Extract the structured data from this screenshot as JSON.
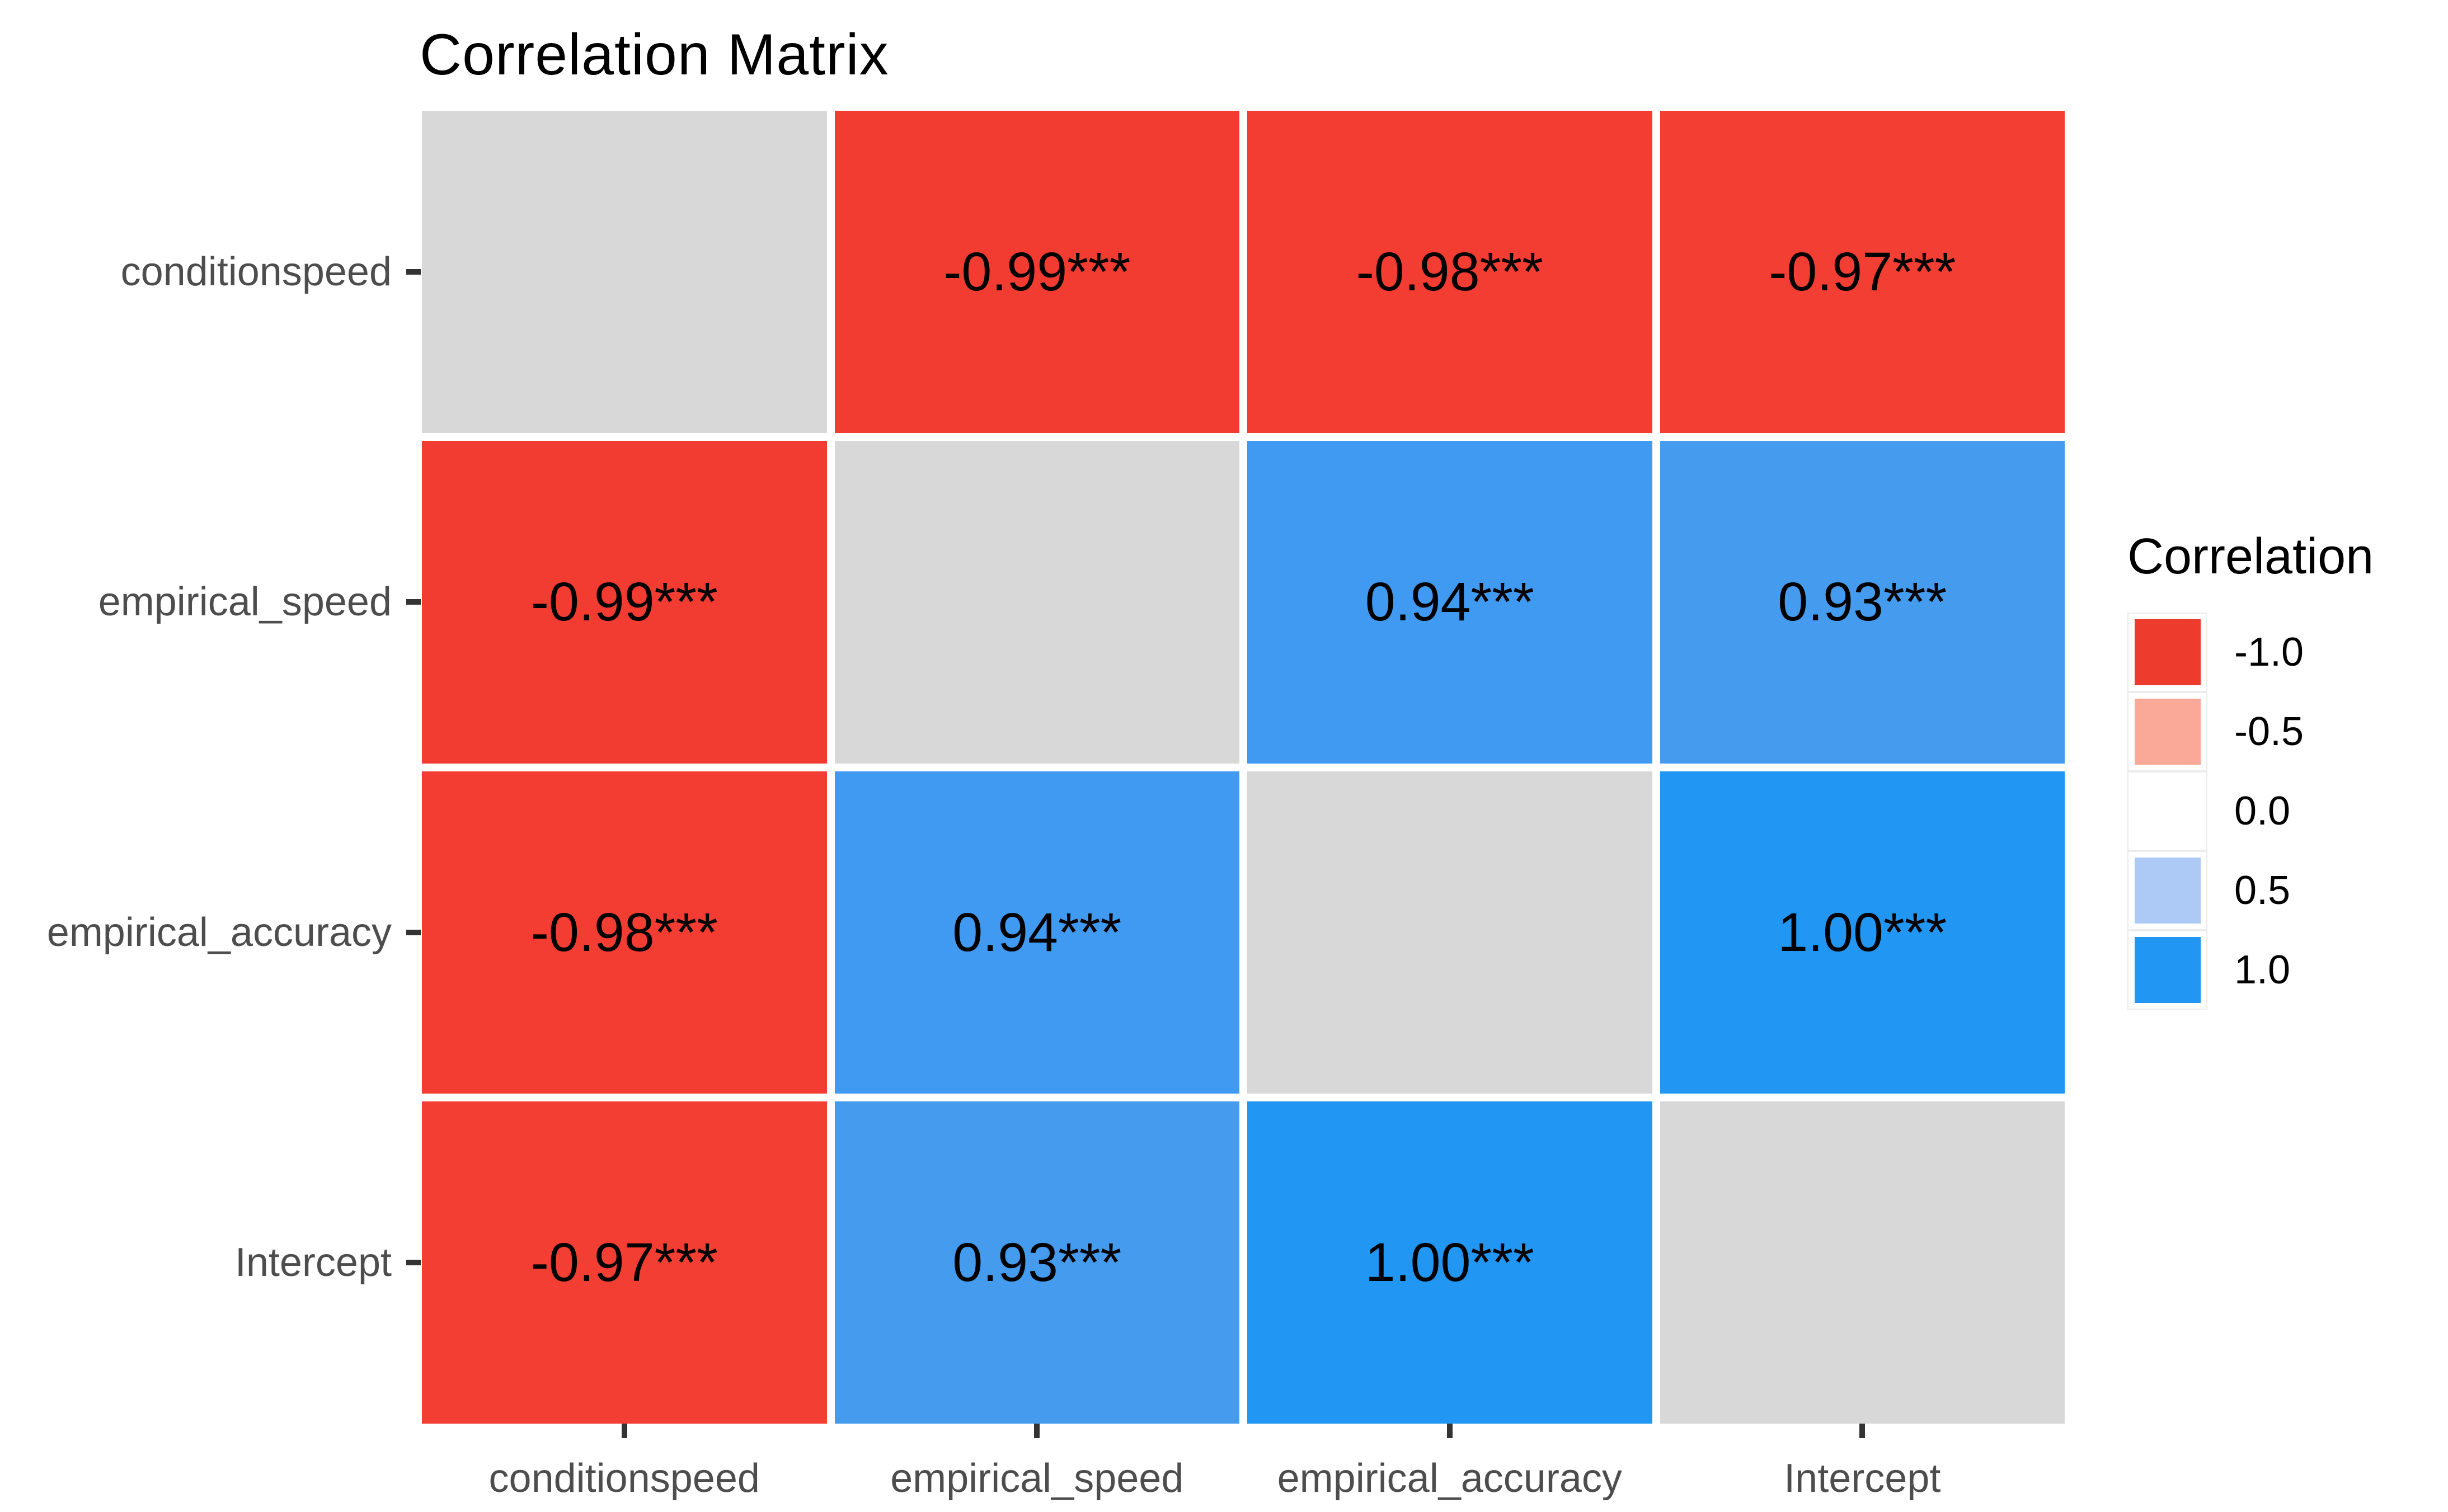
{
  "title": "Correlation Matrix",
  "axes": {
    "y_labels": [
      "conditionspeed",
      "empirical_speed",
      "empirical_accuracy",
      "Intercept"
    ],
    "x_labels": [
      "conditionspeed",
      "empirical_speed",
      "empirical_accuracy",
      "Intercept"
    ]
  },
  "legend": {
    "title": "Correlation",
    "entries": [
      {
        "label": "-1.0",
        "color": "#ED3B2E"
      },
      {
        "label": "-0.5",
        "color": "#FAA898"
      },
      {
        "label": "0.0",
        "color": "#FFFFFF"
      },
      {
        "label": "0.5",
        "color": "#ADC9F5"
      },
      {
        "label": "1.0",
        "color": "#2196F3"
      }
    ]
  },
  "colors": {
    "diagonal_cell": "#D8D8D8",
    "axis_text": "#4D4D4D",
    "tick": "#333333",
    "cell_text": "#000000",
    "background": "#FFFFFF",
    "legend_key_border": "#ECECEC"
  },
  "chart_data": {
    "type": "heatmap",
    "title": "Correlation Matrix",
    "variables": [
      "conditionspeed",
      "empirical_speed",
      "empirical_accuracy",
      "Intercept"
    ],
    "value_range": [
      -1.0,
      1.0
    ],
    "matrix": [
      [
        null,
        -0.99,
        -0.98,
        -0.97
      ],
      [
        -0.99,
        null,
        0.94,
        0.93
      ],
      [
        -0.98,
        0.94,
        null,
        1.0
      ],
      [
        -0.97,
        0.93,
        1.0,
        null
      ]
    ],
    "cell_labels": [
      [
        "",
        "-0.99***",
        "-0.98***",
        "-0.97***"
      ],
      [
        "-0.99***",
        "",
        "0.94***",
        "0.93***"
      ],
      [
        "-0.98***",
        "0.94***",
        "",
        "1.00***"
      ],
      [
        "-0.97***",
        "0.93***",
        "1.00***",
        ""
      ]
    ],
    "cell_colors": [
      [
        "#D8D8D8",
        "#F23C32",
        "#F33D33",
        "#F33E34"
      ],
      [
        "#F23C32",
        "#D8D8D8",
        "#419AF1",
        "#459CEF"
      ],
      [
        "#F33D33",
        "#419AF1",
        "#D8D8D8",
        "#2196F3"
      ],
      [
        "#F33E34",
        "#459CEF",
        "#2196F3",
        "#D8D8D8"
      ]
    ],
    "legend_position": "right",
    "grid": false
  }
}
